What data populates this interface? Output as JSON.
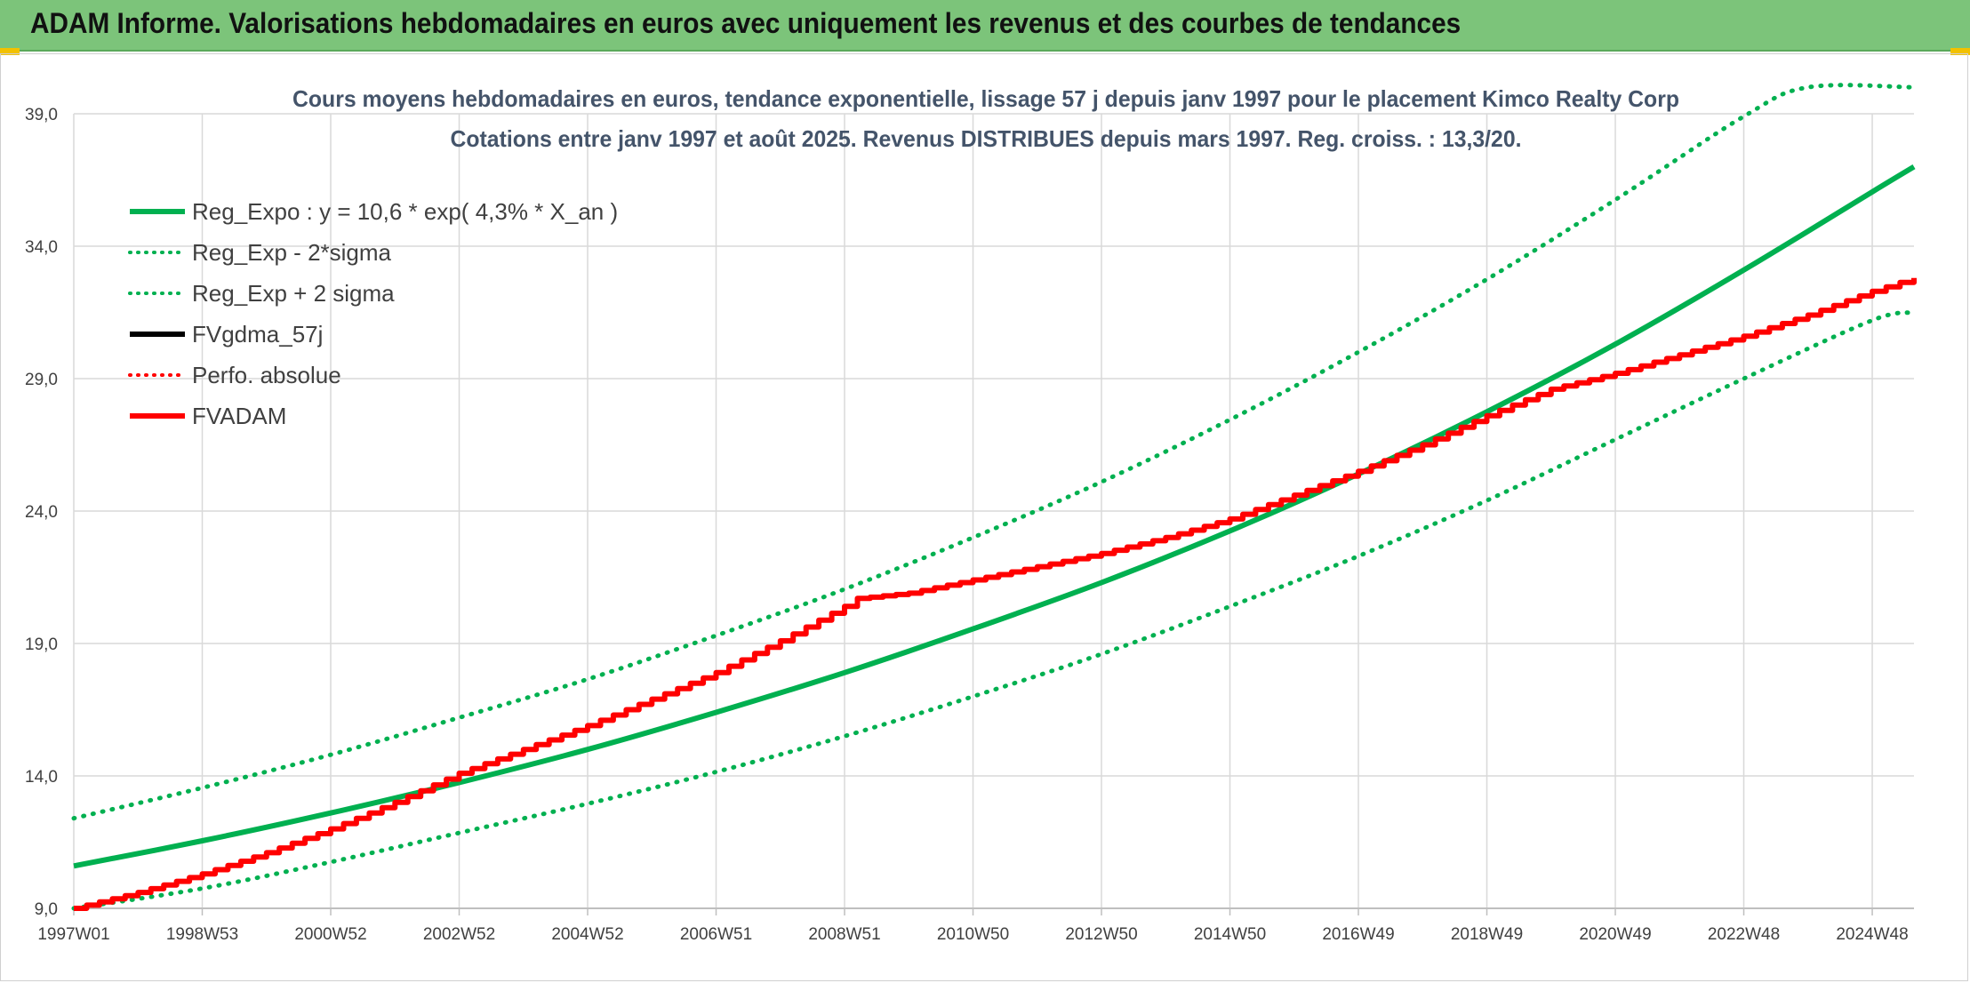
{
  "banner": {
    "title": "ADAM Informe. Valorisations hebdomadaires en euros avec uniquement les revenus et des courbes de tendances"
  },
  "colors": {
    "banner_bg": "#7cc47a",
    "reg_green": "#00b050",
    "adam_red": "#ff0000",
    "black": "#000000",
    "grid": "#d9d9d9"
  },
  "chart_data": {
    "type": "line",
    "title": "Cours moyens hebdomadaires en euros, tendance exponentielle, lissage 57 j depuis janv 1997 pour le placement Kimco Realty Corp",
    "subtitle": "Cotations entre janv 1997 et août 2025. Revenus DISTRIBUES depuis mars 1997. Reg. croiss. : 13,3/20.",
    "xlabel": "",
    "ylabel": "",
    "ylim": [
      9.0,
      39.0
    ],
    "y_ticks": [
      "9,0",
      "14,0",
      "19,0",
      "24,0",
      "29,0",
      "34,0",
      "39,0"
    ],
    "y_tick_values": [
      9,
      14,
      19,
      24,
      29,
      34,
      39
    ],
    "x_ticks": [
      "1997W01",
      "1998W53",
      "2000W52",
      "2002W52",
      "2004W52",
      "2006W51",
      "2008W51",
      "2010W50",
      "2012W50",
      "2014W50",
      "2016W49",
      "2018W49",
      "2020W49",
      "2022W48",
      "2024W48"
    ],
    "x_tick_years": [
      1997.0,
      1999.0,
      2001.0,
      2003.0,
      2005.0,
      2007.0,
      2009.0,
      2011.0,
      2013.0,
      2015.0,
      2017.0,
      2019.0,
      2021.0,
      2023.0,
      2025.0
    ],
    "x_range": [
      1997.0,
      2025.65
    ],
    "grid": true,
    "legend_position": "top-left",
    "series": [
      {
        "name": "Reg_Expo : y = 10,6 * exp( 4,3% *  X_an )",
        "style": "solid",
        "color": "#00b050",
        "x": [
          1997.0,
          1999.0,
          2001.0,
          2003.0,
          2005.0,
          2007.0,
          2009.0,
          2011.0,
          2013.0,
          2015.0,
          2017.0,
          2019.0,
          2021.0,
          2023.0,
          2025.0,
          2025.65
        ],
        "y": [
          10.6,
          11.55,
          12.6,
          13.75,
          15.0,
          16.4,
          17.9,
          19.55,
          21.3,
          23.25,
          25.4,
          27.75,
          30.3,
          33.1,
          36.05,
          37.0
        ]
      },
      {
        "name": "Reg_Exp - 2*sigma",
        "style": "dotted",
        "color": "#00b050",
        "x": [
          1997.0,
          1999.0,
          2001.0,
          2003.0,
          2005.0,
          2007.0,
          2009.0,
          2011.0,
          2013.0,
          2015.0,
          2017.0,
          2019.0,
          2021.0,
          2023.0,
          2025.0,
          2025.65
        ],
        "y": [
          9.0,
          9.75,
          10.75,
          11.85,
          12.95,
          14.15,
          15.5,
          17.0,
          18.6,
          20.4,
          22.3,
          24.4,
          26.7,
          29.0,
          31.2,
          31.5
        ]
      },
      {
        "name": "Reg_Exp + 2 sigma",
        "style": "dotted",
        "color": "#00b050",
        "x": [
          1997.0,
          1999.0,
          2001.0,
          2003.0,
          2005.0,
          2007.0,
          2009.0,
          2011.0,
          2013.0,
          2015.0,
          2017.0,
          2019.0,
          2021.0,
          2023.0,
          2024.0,
          2025.65
        ],
        "y": [
          12.4,
          13.55,
          14.8,
          16.2,
          17.65,
          19.3,
          21.05,
          23.0,
          25.1,
          27.45,
          30.0,
          32.75,
          35.75,
          38.9,
          40.0,
          40.0
        ]
      },
      {
        "name": "FVgdma_57j",
        "style": "solid",
        "color": "#000000",
        "x": [],
        "y": []
      },
      {
        "name": "Perfo. absolue",
        "style": "dotted",
        "color": "#ff0000",
        "x": [],
        "y": []
      },
      {
        "name": "FVADAM",
        "style": "solid",
        "color": "#ff0000",
        "x": [
          1997.0,
          1998.0,
          1999.0,
          2000.0,
          2001.0,
          2002.0,
          2003.0,
          2004.0,
          2005.0,
          2006.0,
          2007.0,
          2008.0,
          2009.0,
          2009.2,
          2010.0,
          2011.0,
          2012.0,
          2013.0,
          2014.0,
          2015.0,
          2016.0,
          2017.0,
          2018.0,
          2019.0,
          2020.0,
          2021.0,
          2022.0,
          2023.0,
          2024.0,
          2025.0,
          2025.65
        ],
        "y": [
          9.0,
          9.6,
          10.3,
          11.1,
          12.0,
          13.0,
          14.1,
          15.0,
          15.9,
          16.9,
          17.9,
          19.1,
          20.4,
          20.7,
          20.9,
          21.4,
          21.9,
          22.4,
          23.0,
          23.7,
          24.6,
          25.5,
          26.5,
          27.6,
          28.6,
          29.2,
          29.9,
          30.6,
          31.4,
          32.3,
          32.8
        ]
      }
    ]
  }
}
